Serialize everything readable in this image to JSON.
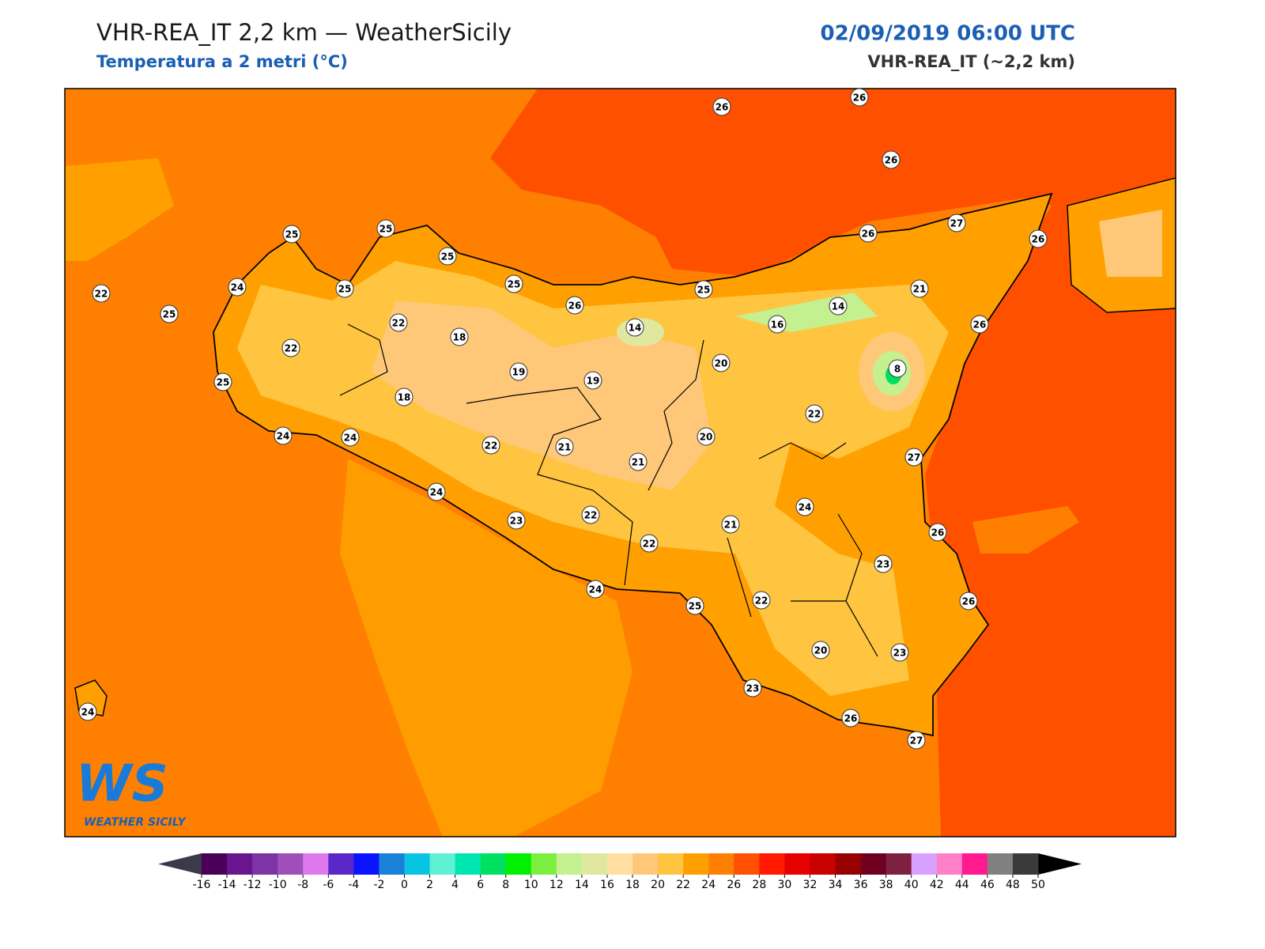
{
  "header": {
    "title": "VHR-REA_IT 2,2 km — WeatherSicily",
    "subtitle": "Temperatura a 2 metri (°C)",
    "date": "02/09/2019 06:00 UTC",
    "model": "VHR-REA_IT (~2,2 km)"
  },
  "stations": [
    26,
    26,
    26,
    27,
    26,
    26,
    25,
    25,
    25,
    25,
    26,
    25,
    21,
    14,
    16,
    26,
    22,
    25,
    24,
    25,
    22,
    22,
    18,
    14,
    20,
    8,
    19,
    19,
    25,
    18,
    22,
    24,
    24,
    22,
    21,
    20,
    21,
    27,
    24,
    24,
    23,
    22,
    21,
    26,
    22,
    23,
    24,
    25,
    22,
    26,
    20,
    23,
    23,
    26,
    27,
    24
  ],
  "colorbar": {
    "ticks": [
      -16,
      -14,
      -12,
      -10,
      -8,
      -6,
      -4,
      -2,
      0,
      2,
      4,
      6,
      8,
      10,
      12,
      14,
      16,
      18,
      20,
      22,
      24,
      26,
      28,
      30,
      32,
      34,
      36,
      38,
      40,
      42,
      44,
      46,
      48,
      50
    ],
    "colors": [
      "#4b0057",
      "#6a1590",
      "#7d35a5",
      "#9e50b8",
      "#de78ec",
      "#5a28c8",
      "#0a14ff",
      "#1a80d8",
      "#08c4e4",
      "#60f0d4",
      "#00e6b0",
      "#00e060",
      "#00f000",
      "#7cf040",
      "#c4f090",
      "#e0e8a0",
      "#ffe0a0",
      "#ffc878",
      "#ffc440",
      "#ffa000",
      "#ff8000",
      "#ff5000",
      "#ff1a00",
      "#e60000",
      "#c80000",
      "#960000",
      "#700020",
      "#7e2040",
      "#d8a0ff",
      "#ff80c8",
      "#ff1a90",
      "#808080",
      "#3a3a3a"
    ],
    "under": "#3a3a4a",
    "over": "#000000"
  },
  "logo": {
    "letters": "WS",
    "name": "WEATHER SICILY"
  }
}
